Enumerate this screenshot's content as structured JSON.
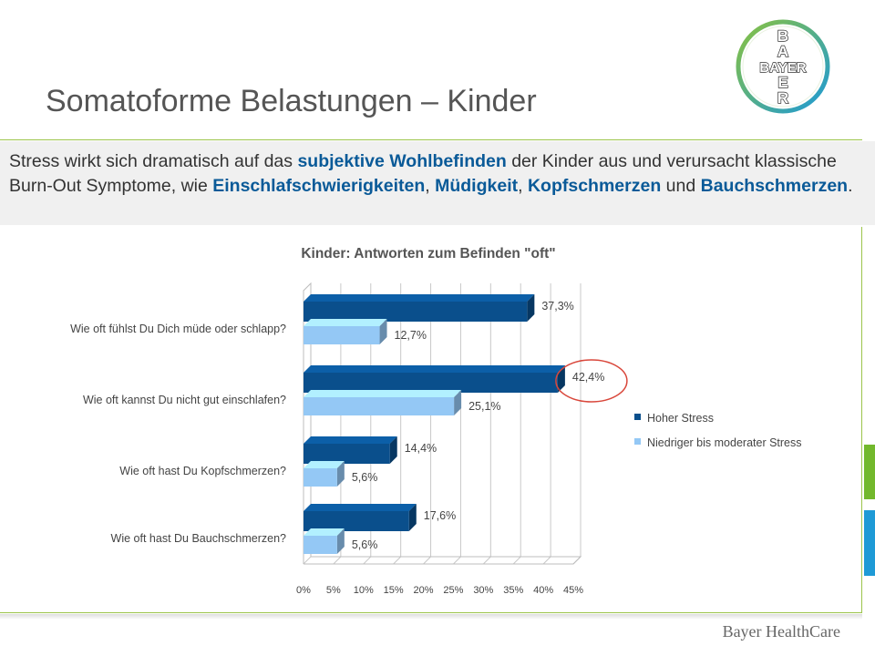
{
  "slide": {
    "title": "Somatoforme Belastungen – Kinder",
    "intro_parts": [
      {
        "text": "Stress wirkt sich dramatisch auf das ",
        "bold": false
      },
      {
        "text": "subjektive Wohlbefinden",
        "bold": true
      },
      {
        "text": " der Kinder aus und verursacht klassische Burn-Out Symptome, wie ",
        "bold": false
      },
      {
        "text": "Einschlafschwierigkeiten",
        "bold": true
      },
      {
        "text": ", ",
        "bold": false
      },
      {
        "text": "Müdigkeit",
        "bold": true
      },
      {
        "text": ", ",
        "bold": false
      },
      {
        "text": "Kopfschmerzen",
        "bold": true
      },
      {
        "text": " und ",
        "bold": false
      },
      {
        "text": "Bauchschmerzen",
        "bold": true
      },
      {
        "text": ".",
        "bold": false
      }
    ],
    "footer_brand": "Bayer HealthCare",
    "logo_letters": {
      "vertical": [
        "B",
        "A",
        "Y",
        "E",
        "R"
      ],
      "horizontal": "BAYER"
    },
    "colors": {
      "accent_green": "#9bc44a",
      "accent_blue": "#0a5a98",
      "logo_green": "#89c23f",
      "logo_blue": "#1e9ad6"
    }
  },
  "chart_data": {
    "type": "bar",
    "orientation": "horizontal",
    "style": "3d-clustered",
    "title": "Kinder: Antworten zum Befinden \"oft\"",
    "categories": [
      "Wie oft fühlst Du Dich müde oder schlapp?",
      "Wie oft kannst Du nicht gut einschlafen?",
      "Wie oft hast Du Kopfschmerzen?",
      "Wie oft hast Du Bauchschmerzen?"
    ],
    "series": [
      {
        "name": "Hoher Stress",
        "color": "#0a4f8c",
        "values": [
          37.3,
          42.4,
          14.4,
          17.6
        ],
        "labels": [
          "37,3%",
          "42,4%",
          "14,4%",
          "17,6%"
        ]
      },
      {
        "name": "Niedriger bis moderater Stress",
        "color": "#94c8f5",
        "values": [
          12.7,
          25.1,
          5.6,
          5.6
        ],
        "labels": [
          "12,7%",
          "25,1%",
          "5,6%",
          "5,6%"
        ]
      }
    ],
    "xlim": [
      0,
      45
    ],
    "ticks": [
      "0%",
      "5%",
      "10%",
      "15%",
      "20%",
      "25%",
      "30%",
      "35%",
      "40%",
      "45%"
    ],
    "grid": true,
    "legend_position": "right",
    "highlight": {
      "series": 0,
      "category": 1,
      "shape": "circle",
      "color": "#d9473b"
    }
  }
}
